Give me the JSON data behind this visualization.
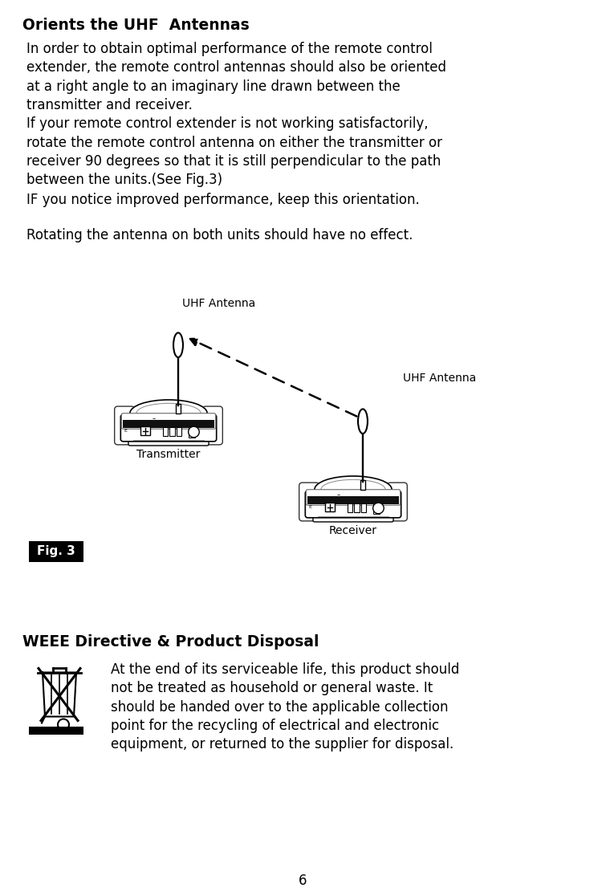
{
  "title": "Orients the UHF  Antennas",
  "para1_line1": "In order to obtain optimal performance of the remote control",
  "para1_line2": "extender, the remote control antennas should also be oriented",
  "para1_line3": "at a right angle to an imaginary line drawn between the",
  "para1_line4": "transmitter and receiver.",
  "para1_line5": "If your remote control extender is not working satisfactorily,",
  "para1_line6": "rotate the remote control antenna on either the transmitter or",
  "para1_line7": "receiver 90 degrees so that it is still perpendicular to the path",
  "para1_line8": "between the units.(See Fig.3)",
  "para2": "IF you notice improved performance, keep this orientation.",
  "para3": "Rotating the antenna on both units should have no effect.",
  "uhf_label1": "UHF Antenna",
  "uhf_label2": "UHF Antenna",
  "transmitter_label": "Transmitter",
  "receiver_label": "Receiver",
  "fig_label": "Fig. 3",
  "weee_title": "WEEE Directive & Product Disposal",
  "weee_text": "At the end of its serviceable life, this product should\nnot be treated as household or general waste. It\nshould be handed over to the applicable collection\npoint for the recycling of electrical and electronic\nequipment, or returned to the supplier for disposal.",
  "page_number": "6",
  "bg_color": "#ffffff",
  "text_color": "#000000"
}
